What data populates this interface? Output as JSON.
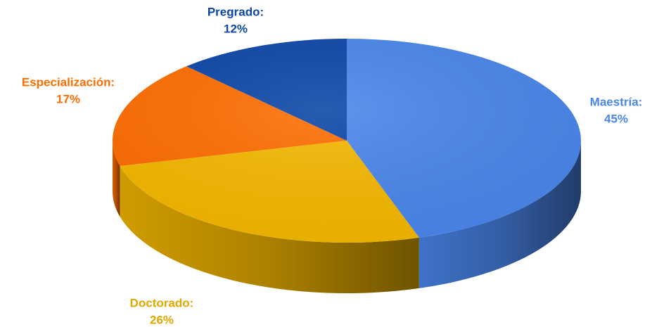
{
  "chart_data": {
    "type": "pie",
    "categories": [
      "Maestría:",
      "Doctorado:",
      "Especialización:",
      "Pregrado:"
    ],
    "values": [
      45,
      26,
      17,
      12
    ],
    "value_labels": [
      "45%",
      "26%",
      "17%",
      "12%"
    ],
    "colors": [
      "#4a86ec",
      "#f5b800",
      "#ff6d00",
      "#0b46a8"
    ]
  }
}
